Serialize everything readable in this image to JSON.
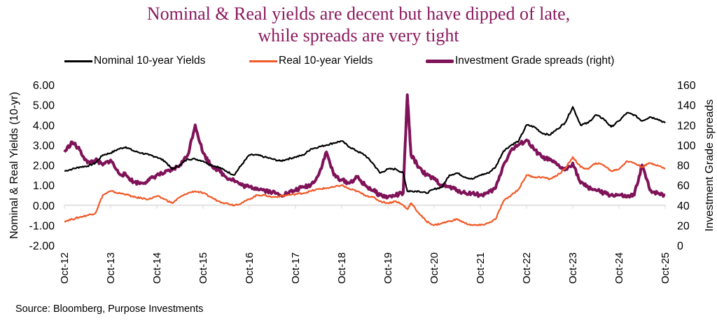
{
  "title_lines": [
    "Nominal & Real yields are decent but have dipped of late,",
    "while spreads are very tight"
  ],
  "source": "Source: Bloomberg, Purpose Investments",
  "colors": {
    "title": "#8B1A5E",
    "nominal": "#000000",
    "real": "#F05A28",
    "spreads": "#7F1259",
    "zero_line": "#D9D9D9"
  },
  "chart_data": {
    "type": "line",
    "title": "Nominal & Real yields are decent but have dipped of late, while spreads are very tight",
    "xlabel": "",
    "ylabel": "Nominal & Real Yields (10-yr)",
    "y2label": "Investment Grade spreads",
    "ylim": [
      -2,
      6
    ],
    "y2lim": [
      0,
      160
    ],
    "yticks": [
      "6.00",
      "5.00",
      "4.00",
      "3.00",
      "2.00",
      "1.00",
      "0.00",
      "-1.00",
      "-2.00"
    ],
    "y2ticks": [
      "160",
      "140",
      "120",
      "100",
      "80",
      "60",
      "40",
      "20",
      "0"
    ],
    "xticks": [
      "Oct-12",
      "Oct-13",
      "Oct-14",
      "Oct-15",
      "Oct-16",
      "Oct-17",
      "Oct-18",
      "Oct-19",
      "Oct-20",
      "Oct-21",
      "Oct-22",
      "Oct-23",
      "Oct-24",
      "Oct-25"
    ],
    "grid": false,
    "legend_position": "top",
    "x_years": [
      2012.75,
      2012.92,
      2013.08,
      2013.25,
      2013.42,
      2013.58,
      2013.75,
      2013.92,
      2014.08,
      2014.25,
      2014.42,
      2014.58,
      2014.75,
      2014.92,
      2015.08,
      2015.25,
      2015.42,
      2015.58,
      2015.75,
      2015.92,
      2016.08,
      2016.25,
      2016.42,
      2016.58,
      2016.75,
      2016.92,
      2017.08,
      2017.25,
      2017.42,
      2017.58,
      2017.75,
      2017.92,
      2018.08,
      2018.25,
      2018.42,
      2018.58,
      2018.75,
      2018.92,
      2019.08,
      2019.25,
      2019.42,
      2019.58,
      2019.75,
      2019.92,
      2020.08,
      2020.17,
      2020.25,
      2020.42,
      2020.58,
      2020.75,
      2020.92,
      2021.08,
      2021.25,
      2021.42,
      2021.58,
      2021.75,
      2021.92,
      2022.08,
      2022.25,
      2022.42,
      2022.58,
      2022.75,
      2022.92,
      2023.08,
      2023.25,
      2023.42,
      2023.58,
      2023.75,
      2023.92,
      2024.08,
      2024.25,
      2024.42,
      2024.58,
      2024.75,
      2024.92,
      2025.08,
      2025.25,
      2025.42,
      2025.58,
      2025.75
    ],
    "series": [
      {
        "name": "Nominal 10-year Yields",
        "axis": "left",
        "values": [
          1.7,
          1.8,
          1.9,
          1.95,
          2.1,
          2.5,
          2.6,
          2.8,
          2.9,
          2.7,
          2.6,
          2.5,
          2.4,
          2.2,
          1.8,
          2.0,
          2.3,
          2.3,
          2.2,
          2.0,
          1.9,
          1.7,
          1.5,
          2.0,
          2.5,
          2.5,
          2.4,
          2.3,
          2.2,
          2.3,
          2.4,
          2.5,
          2.8,
          2.9,
          3.0,
          3.1,
          3.2,
          2.9,
          2.7,
          2.5,
          2.1,
          1.6,
          1.8,
          1.8,
          1.6,
          0.7,
          0.7,
          0.7,
          0.6,
          0.8,
          0.9,
          1.5,
          1.6,
          1.4,
          1.3,
          1.5,
          1.6,
          1.9,
          2.7,
          3.0,
          3.2,
          4.0,
          3.9,
          3.6,
          3.5,
          3.8,
          4.1,
          4.9,
          4.0,
          4.1,
          4.5,
          4.3,
          3.9,
          4.2,
          4.6,
          4.5,
          4.2,
          4.4,
          4.3,
          4.1
        ]
      },
      {
        "name": "Real 10-year Yields",
        "axis": "left",
        "values": [
          -0.8,
          -0.7,
          -0.6,
          -0.5,
          -0.4,
          0.5,
          0.7,
          0.6,
          0.55,
          0.4,
          0.35,
          0.3,
          0.45,
          0.3,
          0.1,
          0.4,
          0.6,
          0.7,
          0.6,
          0.4,
          0.2,
          0.1,
          0.0,
          0.1,
          0.3,
          0.5,
          0.5,
          0.4,
          0.45,
          0.5,
          0.55,
          0.6,
          0.7,
          0.8,
          0.85,
          0.9,
          1.0,
          0.8,
          0.7,
          0.5,
          0.4,
          0.2,
          0.1,
          0.2,
          0.0,
          -0.2,
          0.1,
          -0.4,
          -0.8,
          -1.0,
          -0.9,
          -0.8,
          -0.7,
          -0.9,
          -1.0,
          -1.0,
          -0.9,
          -0.7,
          0.2,
          0.5,
          0.8,
          1.5,
          1.4,
          1.4,
          1.3,
          1.5,
          1.8,
          2.4,
          1.9,
          1.8,
          2.1,
          2.0,
          1.7,
          1.8,
          2.2,
          2.1,
          1.9,
          2.1,
          2.0,
          1.8
        ]
      },
      {
        "name": "Investment Grade spreads (right)",
        "axis": "right",
        "values": [
          93,
          103,
          95,
          82,
          85,
          80,
          85,
          72,
          70,
          63,
          62,
          65,
          70,
          72,
          75,
          80,
          90,
          120,
          92,
          80,
          75,
          68,
          65,
          60,
          58,
          57,
          55,
          53,
          50,
          52,
          55,
          58,
          60,
          70,
          93,
          70,
          65,
          62,
          68,
          60,
          55,
          50,
          48,
          50,
          52,
          150,
          90,
          78,
          70,
          66,
          60,
          58,
          55,
          52,
          52,
          50,
          52,
          57,
          80,
          95,
          100,
          105,
          95,
          88,
          85,
          80,
          75,
          82,
          62,
          58,
          55,
          52,
          50,
          50,
          48,
          50,
          80,
          55,
          52,
          50
        ]
      }
    ]
  }
}
